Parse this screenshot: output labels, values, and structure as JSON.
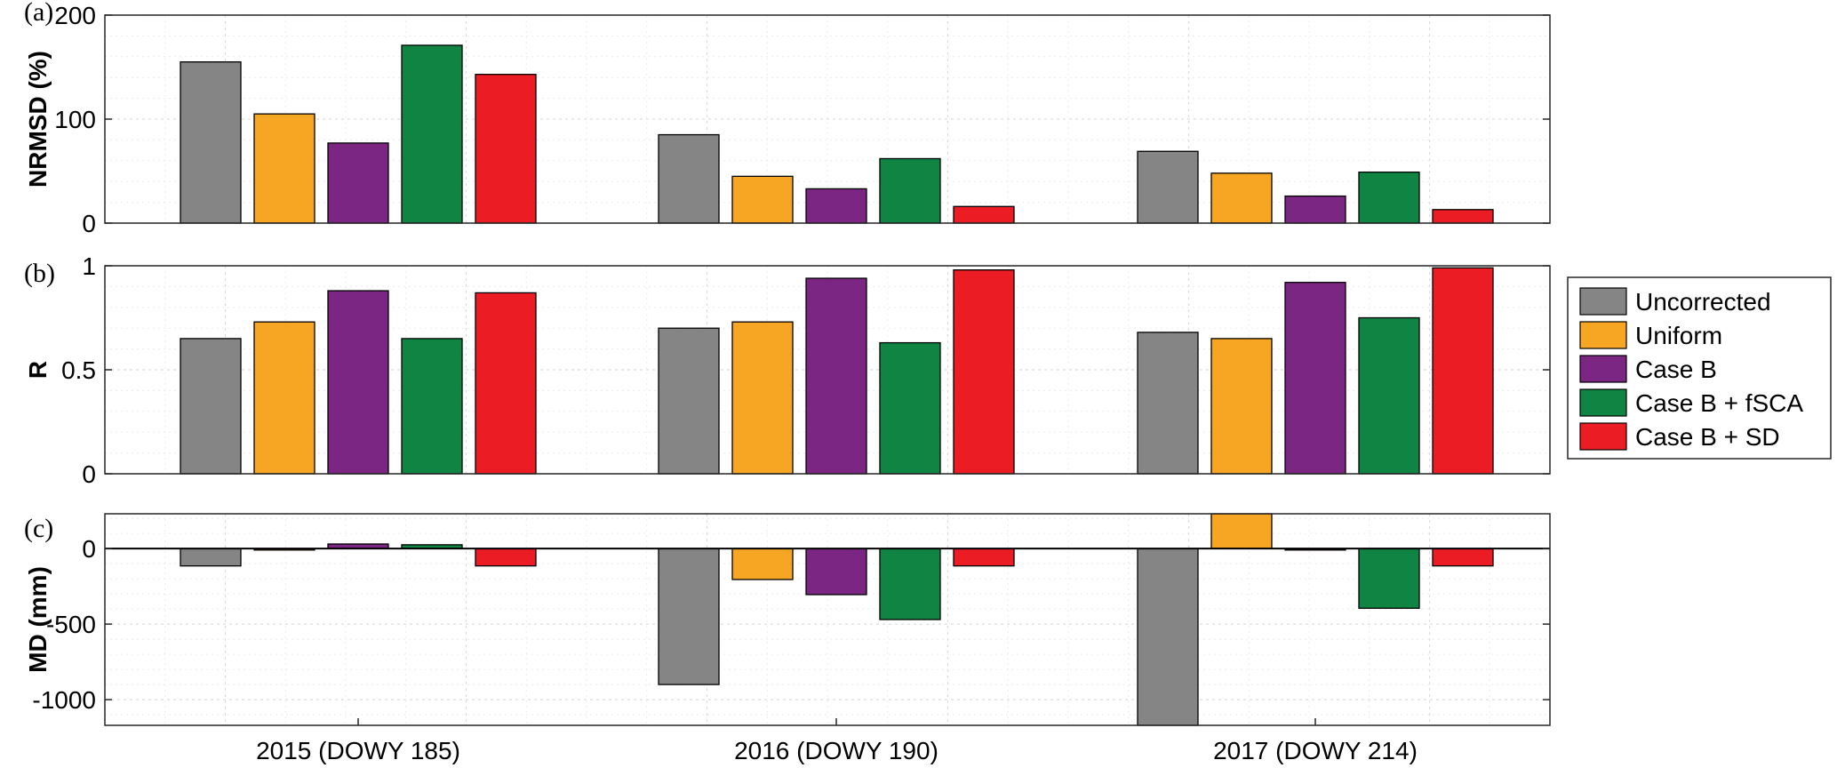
{
  "chart_data": [
    {
      "type": "bar",
      "panel_label": "(a)",
      "ylabel": "NRMSD (%)",
      "ylim": [
        0,
        200
      ],
      "yticks": [
        0,
        100,
        200
      ],
      "ytick_labels": [
        "0",
        "100",
        "200"
      ],
      "categories": [
        "2015 (DOWY 185)",
        "2016 (DOWY 190)",
        "2017 (DOWY 214)"
      ],
      "grid": true,
      "series": [
        {
          "name": "Uncorrected",
          "color": "#858585",
          "values": [
            155,
            85,
            69
          ]
        },
        {
          "name": "Uniform",
          "color": "#F6A623",
          "values": [
            105,
            45,
            48
          ]
        },
        {
          "name": "Case B",
          "color": "#7B2682",
          "values": [
            77,
            33,
            26
          ]
        },
        {
          "name": "Case B + fSCA",
          "color": "#108443",
          "values": [
            171,
            62,
            49
          ]
        },
        {
          "name": "Case B + SD",
          "color": "#EC1C24",
          "values": [
            143,
            16,
            13
          ]
        }
      ]
    },
    {
      "type": "bar",
      "panel_label": "(b)",
      "ylabel": "R",
      "ylim": [
        0,
        1
      ],
      "yticks": [
        0,
        0.5,
        1
      ],
      "ytick_labels": [
        "0",
        "0.5",
        "1"
      ],
      "categories": [
        "2015 (DOWY 185)",
        "2016 (DOWY 190)",
        "2017 (DOWY 214)"
      ],
      "grid": true,
      "series": [
        {
          "name": "Uncorrected",
          "color": "#858585",
          "values": [
            0.65,
            0.7,
            0.68
          ]
        },
        {
          "name": "Uniform",
          "color": "#F6A623",
          "values": [
            0.73,
            0.73,
            0.65
          ]
        },
        {
          "name": "Case B",
          "color": "#7B2682",
          "values": [
            0.88,
            0.94,
            0.92
          ]
        },
        {
          "name": "Case B + fSCA",
          "color": "#108443",
          "values": [
            0.65,
            0.63,
            0.75
          ]
        },
        {
          "name": "Case B + SD",
          "color": "#EC1C24",
          "values": [
            0.87,
            0.98,
            0.99
          ]
        }
      ]
    },
    {
      "type": "bar",
      "panel_label": "(c)",
      "ylabel": "MD (mm)",
      "ylim": [
        -1170,
        230
      ],
      "yticks": [
        -1000,
        -500,
        0
      ],
      "ytick_labels": [
        "-1000",
        "-500",
        "0"
      ],
      "categories": [
        "2015 (DOWY 185)",
        "2016 (DOWY 190)",
        "2017 (DOWY 214)"
      ],
      "grid": true,
      "series": [
        {
          "name": "Uncorrected",
          "color": "#858585",
          "values": [
            -115,
            -900,
            -1170
          ]
        },
        {
          "name": "Uniform",
          "color": "#F6A623",
          "values": [
            -10,
            -205,
            230
          ]
        },
        {
          "name": "Case B",
          "color": "#7B2682",
          "values": [
            30,
            -305,
            -10
          ]
        },
        {
          "name": "Case B + fSCA",
          "color": "#108443",
          "values": [
            25,
            -470,
            -395
          ]
        },
        {
          "name": "Case B + SD",
          "color": "#EC1C24",
          "values": [
            -115,
            -115,
            -115
          ]
        }
      ]
    }
  ],
  "legend": {
    "placement": "right",
    "entries": [
      {
        "label": "Uncorrected",
        "color": "#858585"
      },
      {
        "label": "Uniform",
        "color": "#F6A623"
      },
      {
        "label": "Case B",
        "color": "#7B2682"
      },
      {
        "label": "Case B + fSCA",
        "color": "#108443"
      },
      {
        "label": "Case B + SD",
        "color": "#EC1C24"
      }
    ]
  }
}
